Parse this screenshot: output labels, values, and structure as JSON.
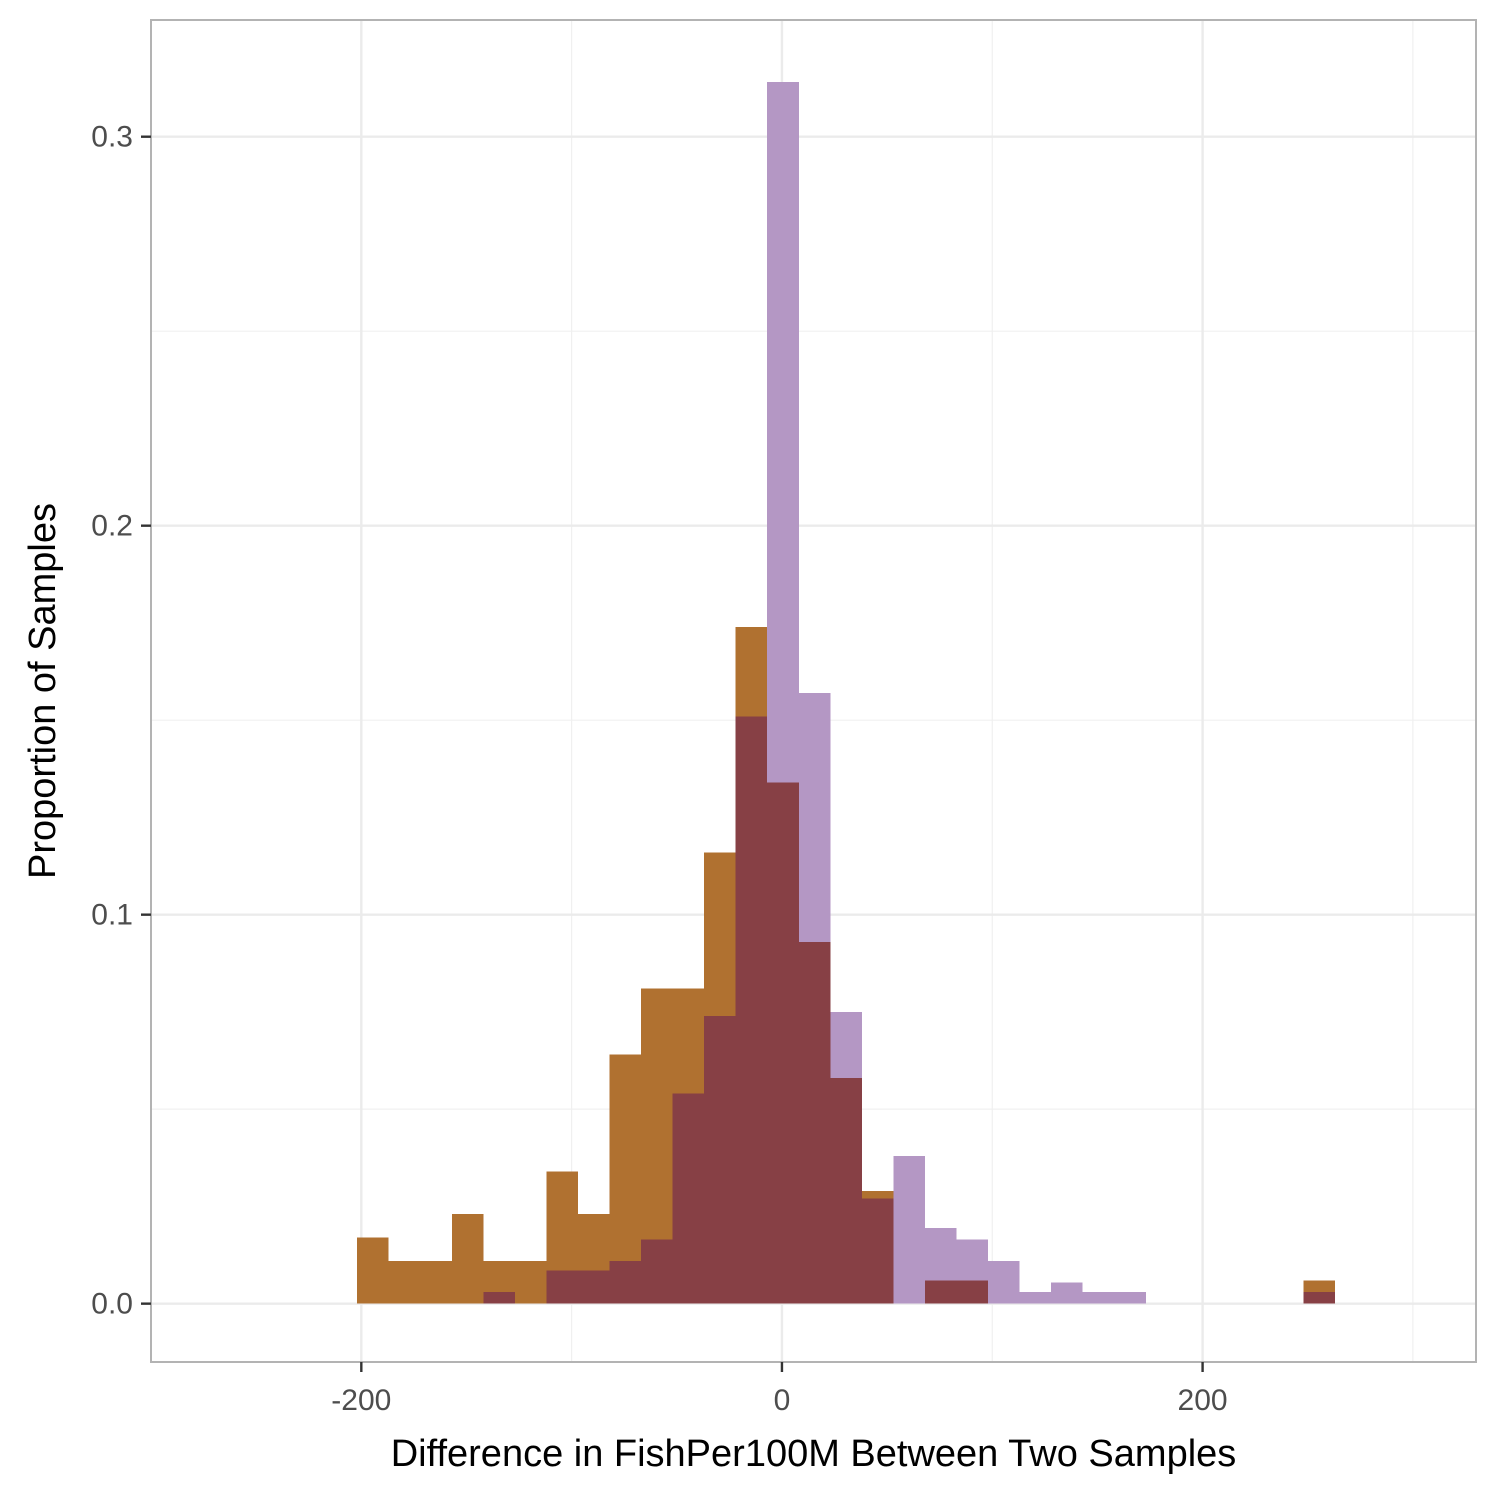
{
  "chart_data": {
    "type": "bar",
    "title": "",
    "xlabel": "Difference in FishPer100M Between Two Samples",
    "ylabel": "Proportion of Samples",
    "xlim": [
      -300,
      330
    ],
    "ylim": [
      -0.015,
      0.33
    ],
    "x_ticks": [
      -200,
      0,
      200
    ],
    "x_tick_labels": [
      "-200",
      "0",
      "200"
    ],
    "y_ticks": [
      0.0,
      0.1,
      0.2,
      0.3
    ],
    "y_tick_labels": [
      "0.0",
      "0.1",
      "0.2",
      "0.3"
    ],
    "grid": true,
    "legend": "none",
    "bin_width": 15,
    "series": [
      {
        "color": "#b07130",
        "bins": [
          {
            "x0": -202,
            "x1": -187,
            "y": 0.017
          },
          {
            "x0": -187,
            "x1": -172,
            "y": 0.011
          },
          {
            "x0": -172,
            "x1": -157,
            "y": 0.011
          },
          {
            "x0": -157,
            "x1": -142,
            "y": 0.023
          },
          {
            "x0": -142,
            "x1": -127,
            "y": 0.011
          },
          {
            "x0": -127,
            "x1": -112,
            "y": 0.011
          },
          {
            "x0": -112,
            "x1": -97,
            "y": 0.034
          },
          {
            "x0": -97,
            "x1": -82,
            "y": 0.023
          },
          {
            "x0": -82,
            "x1": -67,
            "y": 0.064
          },
          {
            "x0": -67,
            "x1": -52,
            "y": 0.081
          },
          {
            "x0": -52,
            "x1": -37,
            "y": 0.081
          },
          {
            "x0": -37,
            "x1": -22,
            "y": 0.116
          },
          {
            "x0": -22,
            "x1": -7,
            "y": 0.174
          },
          {
            "x0": -7,
            "x1": 8,
            "y": 0.134
          },
          {
            "x0": 8,
            "x1": 23,
            "y": 0.093
          },
          {
            "x0": 23,
            "x1": 38,
            "y": 0.058
          },
          {
            "x0": 38,
            "x1": 53,
            "y": 0.029
          },
          {
            "x0": 68,
            "x1": 83,
            "y": 0.006
          },
          {
            "x0": 83,
            "x1": 98,
            "y": 0.006
          },
          {
            "x0": 248,
            "x1": 263,
            "y": 0.006
          }
        ]
      },
      {
        "color": "#b497c4",
        "bins": [
          {
            "x0": -142,
            "x1": -127,
            "y": 0.003
          },
          {
            "x0": -112,
            "x1": -97,
            "y": 0.0085
          },
          {
            "x0": -97,
            "x1": -82,
            "y": 0.0085
          },
          {
            "x0": -82,
            "x1": -67,
            "y": 0.011
          },
          {
            "x0": -67,
            "x1": -52,
            "y": 0.0165
          },
          {
            "x0": -52,
            "x1": -37,
            "y": 0.054
          },
          {
            "x0": -37,
            "x1": -22,
            "y": 0.074
          },
          {
            "x0": -22,
            "x1": -7,
            "y": 0.151
          },
          {
            "x0": -7,
            "x1": 8,
            "y": 0.314
          },
          {
            "x0": 8,
            "x1": 23,
            "y": 0.157
          },
          {
            "x0": 23,
            "x1": 38,
            "y": 0.075
          },
          {
            "x0": 38,
            "x1": 53,
            "y": 0.027
          },
          {
            "x0": 53,
            "x1": 68,
            "y": 0.038
          },
          {
            "x0": 68,
            "x1": 83,
            "y": 0.0195
          },
          {
            "x0": 83,
            "x1": 98,
            "y": 0.0165
          },
          {
            "x0": 98,
            "x1": 113,
            "y": 0.011
          },
          {
            "x0": 113,
            "x1": 128,
            "y": 0.003
          },
          {
            "x0": 128,
            "x1": 143,
            "y": 0.0055
          },
          {
            "x0": 143,
            "x1": 158,
            "y": 0.003
          },
          {
            "x0": 158,
            "x1": 173,
            "y": 0.003
          },
          {
            "x0": 248,
            "x1": 263,
            "y": 0.003
          }
        ]
      }
    ],
    "overlap_color": "#874045"
  }
}
